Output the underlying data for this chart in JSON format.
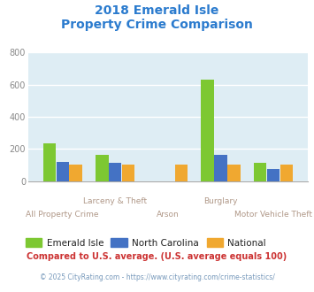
{
  "title_line1": "2018 Emerald Isle",
  "title_line2": "Property Crime Comparison",
  "title_color": "#2b7bce",
  "categories": [
    "All Property Crime",
    "Larceny & Theft",
    "Arson",
    "Burglary",
    "Motor Vehicle Theft"
  ],
  "emerald_isle": [
    237,
    163,
    0,
    630,
    115
  ],
  "north_carolina": [
    118,
    112,
    0,
    163,
    75
  ],
  "national": [
    100,
    100,
    100,
    100,
    100
  ],
  "color_emerald": "#7dc832",
  "color_nc": "#4472c4",
  "color_national": "#f0a830",
  "plot_bg": "#deedf4",
  "ylim": [
    0,
    800
  ],
  "yticks": [
    0,
    200,
    400,
    600,
    800
  ],
  "xlabel_color": "#b09888",
  "grid_color": "#ffffff",
  "footnote": "Compared to U.S. average. (U.S. average equals 100)",
  "footnote2": "© 2025 CityRating.com - https://www.cityrating.com/crime-statistics/",
  "footnote_color": "#cc3333",
  "footnote2_color": "#7799bb",
  "legend_labels": [
    "Emerald Isle",
    "North Carolina",
    "National"
  ],
  "legend_text_color": "#222222"
}
